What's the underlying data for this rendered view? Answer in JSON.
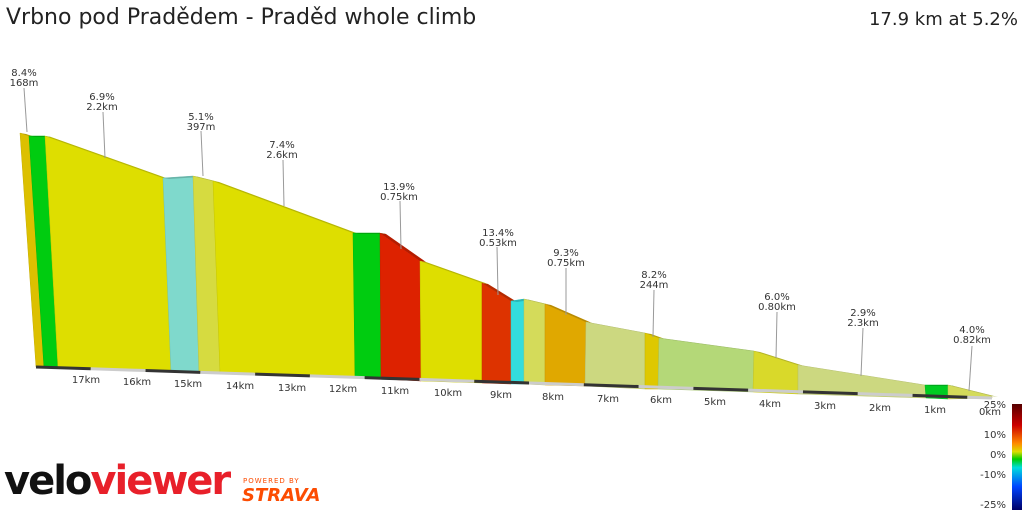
{
  "header": {
    "title": "Vrbno pod Pradědem - Praděd whole climb",
    "summary": "17.9 km at 5.2%"
  },
  "chart_data": {
    "type": "area",
    "title": "Vrbno pod Pradědem - Praděd whole climb",
    "x_axis_ticks": [
      "17km",
      "16km",
      "15km",
      "14km",
      "13km",
      "12km",
      "11km",
      "10km",
      "9km",
      "8km",
      "7km",
      "6km",
      "5km",
      "4km",
      "3km",
      "2km",
      "1km",
      "0km"
    ],
    "segments": [
      {
        "gradient": "8.4%",
        "length": "168m",
        "color": "#dcc000"
      },
      {
        "color": "#00cc10"
      },
      {
        "gradient": "6.9%",
        "length": "2.2km",
        "color": "#dede00"
      },
      {
        "color": "#7fd9cc"
      },
      {
        "gradient": "5.1%",
        "length": "397m",
        "color": "#d6db40"
      },
      {
        "gradient": "7.4%",
        "length": "2.6km",
        "color": "#dede00"
      },
      {
        "color": "#00cc10"
      },
      {
        "gradient": "13.9%",
        "length": "0.75km",
        "color": "#dd2200"
      },
      {
        "color": "#dede00"
      },
      {
        "gradient": "13.4%",
        "length": "0.53km",
        "color": "#dd3300"
      },
      {
        "color": "#33dddd"
      },
      {
        "color": "#d4db5a"
      },
      {
        "gradient": "9.3%",
        "length": "0.75km",
        "color": "#e0a800"
      },
      {
        "color": "#ccd880"
      },
      {
        "gradient": "8.2%",
        "length": "244m",
        "color": "#dec800"
      },
      {
        "color": "#b4d878"
      },
      {
        "gradient": "6.0%",
        "length": "0.80km",
        "color": "#d9d92a"
      },
      {
        "gradient": "2.9%",
        "length": "2.3km",
        "color": "#ccd880"
      },
      {
        "color": "#00cc22"
      },
      {
        "gradient": "4.0%",
        "length": "0.82km",
        "color": "#d4db5a"
      }
    ],
    "legend": {
      "type": "colorbar",
      "labels": [
        "25%",
        "10%",
        "0%",
        "-10%",
        "-25%"
      ],
      "colors": [
        "#550000",
        "#cc0000",
        "#ff8800",
        "#dddd00",
        "#00cc00",
        "#00dddd",
        "#0044ff",
        "#000066"
      ]
    }
  },
  "branding": {
    "logo_velo": "velo",
    "logo_viewer": "viewer",
    "powered_by": "POWERED BY",
    "strava": "STRAVA"
  }
}
